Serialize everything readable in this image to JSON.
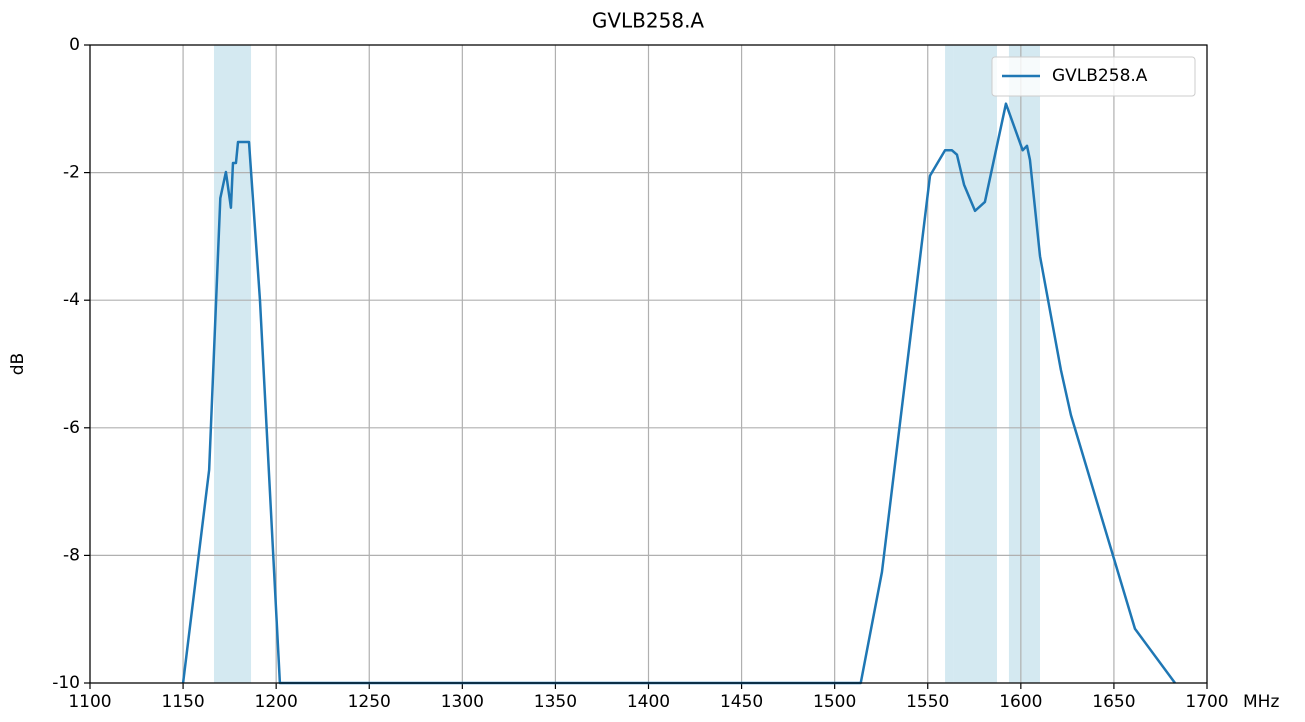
{
  "chart_data": {
    "type": "line",
    "title": "GVLB258.A",
    "xlabel": "MHz",
    "ylabel": "dB",
    "x": [
      1150,
      1164,
      1170,
      1173,
      1175.7,
      1176.8,
      1178.4,
      1179.5,
      1185.4,
      1191.3,
      1202,
      1514,
      1525.4,
      1551.2,
      1559.3,
      1563,
      1565.7,
      1569.5,
      1575.4,
      1580.7,
      1592,
      1601,
      1603.3,
      1604.9,
      1610.3,
      1621.5,
      1626.9,
      1661.3,
      1682.8
    ],
    "series": [
      {
        "name": "GVLB258.A",
        "color": "#1f77b4",
        "values": [
          -10,
          -6.66,
          -2.4,
          -1.99,
          -2.55,
          -1.85,
          -1.85,
          -1.52,
          -1.52,
          -4,
          -10,
          -10,
          -8.26,
          -2.05,
          -1.65,
          -1.65,
          -1.72,
          -2.19,
          -2.6,
          -2.46,
          -0.92,
          -1.65,
          -1.58,
          -1.8,
          -3.31,
          -5.09,
          -5.8,
          -9.15,
          -10
        ]
      }
    ],
    "bands": [
      [
        1166.6,
        1186.5
      ],
      [
        1559.3,
        1563.6
      ],
      [
        1563.6,
        1587.2
      ],
      [
        1593.6,
        1610.3
      ]
    ],
    "band_color": "#d4e9f1",
    "xlim": [
      1100,
      1700
    ],
    "xticks": [
      1100,
      1150,
      1200,
      1250,
      1300,
      1350,
      1400,
      1450,
      1500,
      1550,
      1600,
      1650,
      1700
    ],
    "ylim": [
      -10,
      0
    ],
    "yticks": [
      -10,
      -8,
      -6,
      -4,
      -2,
      0
    ],
    "grid": true,
    "legend": "upper right"
  }
}
